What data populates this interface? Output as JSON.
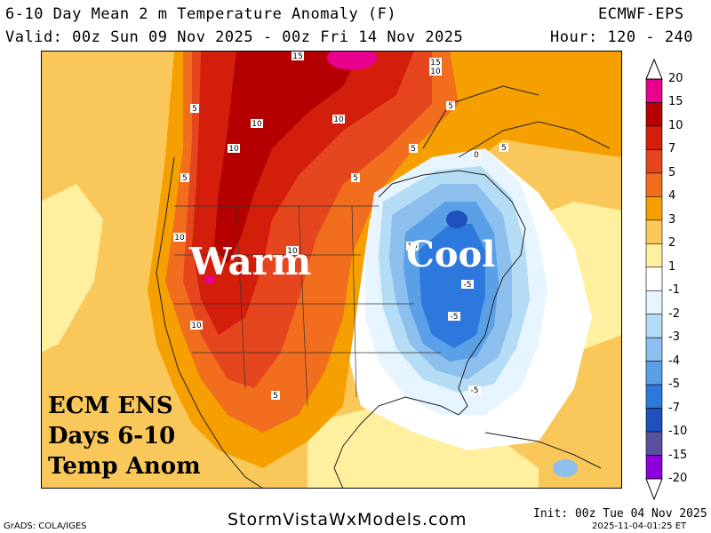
{
  "header": {
    "title": "6-10 Day Mean 2 m Temperature Anomaly (F)",
    "model": "ECMWF-EPS",
    "valid": "Valid: 00z Sun 09 Nov 2025 - 00z Fri 14 Nov 2025",
    "hours": "Hour: 120 - 240"
  },
  "overlay": {
    "warm": "Warm",
    "cool": "Cool",
    "caption_line1": "ECM ENS",
    "caption_line2": "Days 6-10",
    "caption_line3": "Temp Anom"
  },
  "contour_labels": [
    "15",
    "15",
    "10",
    "5",
    "10",
    "10",
    "5",
    "5",
    "10",
    "10",
    "5",
    "10",
    "10",
    "5",
    "10",
    "-5",
    "-5",
    "-5",
    "5",
    "0",
    "5"
  ],
  "colorbar": {
    "labels": [
      "20",
      "15",
      "10",
      "7",
      "5",
      "4",
      "3",
      "2",
      "1",
      "-1",
      "-2",
      "-3",
      "-4",
      "-5",
      "-7",
      "-10",
      "-15",
      "-20"
    ],
    "colors": [
      "#e8008f",
      "#b40000",
      "#d21e0a",
      "#e6461e",
      "#f06e1e",
      "#f5a000",
      "#fac85a",
      "#fff0a0",
      "#ffffff",
      "#e6f5ff",
      "#b4dcf5",
      "#8cbeee",
      "#5aa0e6",
      "#2d78dc",
      "#1e50be",
      "#5a50a0",
      "#8c00dc"
    ]
  },
  "footer": {
    "credit": "GrADS: COLA/IGES",
    "site": "StormVistaWxModels.com",
    "init": "Init: 00z Tue 04 Nov 2025",
    "timestamp": "2025-11-04-01:25 ET"
  }
}
